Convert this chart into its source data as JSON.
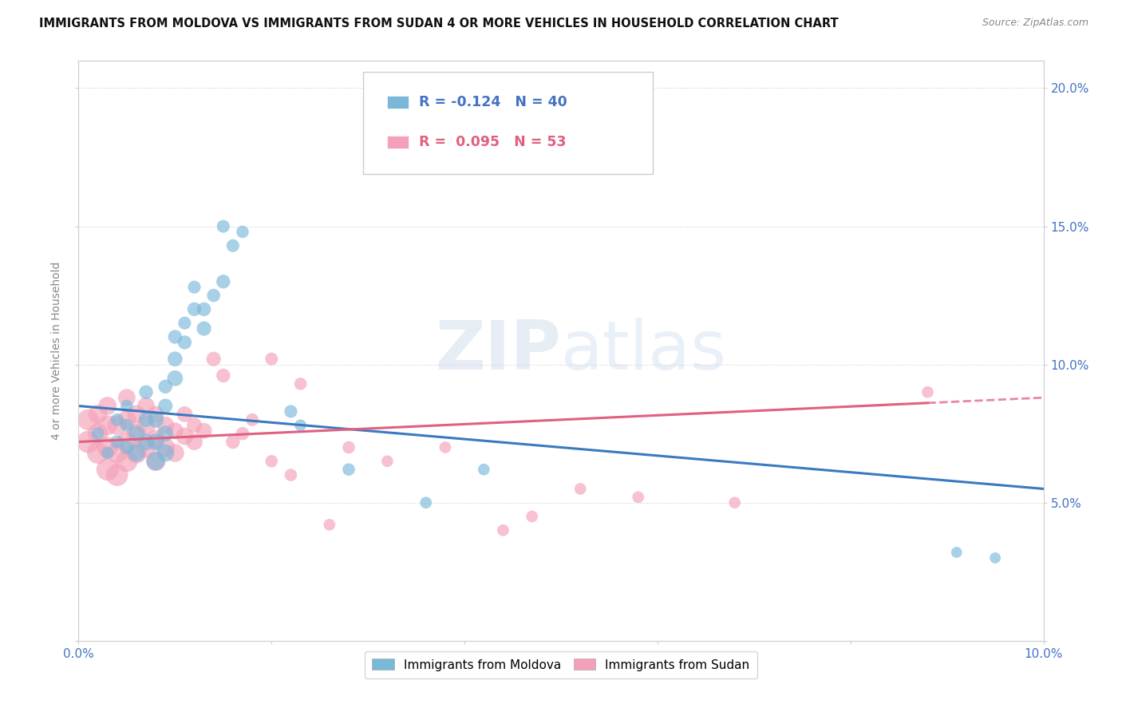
{
  "title": "IMMIGRANTS FROM MOLDOVA VS IMMIGRANTS FROM SUDAN 4 OR MORE VEHICLES IN HOUSEHOLD CORRELATION CHART",
  "source": "Source: ZipAtlas.com",
  "ylabel": "4 or more Vehicles in Household",
  "xlim": [
    0.0,
    0.1
  ],
  "ylim": [
    0.0,
    0.21
  ],
  "xticks": [
    0.0,
    0.02,
    0.04,
    0.06,
    0.08,
    0.1
  ],
  "yticks": [
    0.0,
    0.05,
    0.1,
    0.15,
    0.2
  ],
  "ytick_labels_right": [
    "",
    "5.0%",
    "10.0%",
    "15.0%",
    "20.0%"
  ],
  "xtick_labels": [
    "0.0%",
    "",
    "",
    "",
    "",
    "10.0%"
  ],
  "moldova_color": "#7ab8d9",
  "sudan_color": "#f4a0b8",
  "moldova_line_color": "#3a7abf",
  "sudan_line_color": "#e06080",
  "watermark": "ZIPatlas",
  "moldova_r": -0.124,
  "moldova_n": 40,
  "sudan_r": 0.095,
  "sudan_n": 53,
  "moldova_x": [
    0.002,
    0.003,
    0.004,
    0.004,
    0.005,
    0.005,
    0.005,
    0.006,
    0.006,
    0.007,
    0.007,
    0.007,
    0.008,
    0.008,
    0.008,
    0.009,
    0.009,
    0.009,
    0.009,
    0.01,
    0.01,
    0.01,
    0.011,
    0.011,
    0.012,
    0.012,
    0.013,
    0.013,
    0.014,
    0.015,
    0.015,
    0.016,
    0.017,
    0.022,
    0.023,
    0.028,
    0.036,
    0.042,
    0.091,
    0.095
  ],
  "moldova_y": [
    0.075,
    0.068,
    0.072,
    0.08,
    0.07,
    0.078,
    0.085,
    0.068,
    0.075,
    0.072,
    0.08,
    0.09,
    0.065,
    0.072,
    0.08,
    0.068,
    0.075,
    0.085,
    0.092,
    0.095,
    0.102,
    0.11,
    0.108,
    0.115,
    0.12,
    0.128,
    0.113,
    0.12,
    0.125,
    0.15,
    0.13,
    0.143,
    0.148,
    0.083,
    0.078,
    0.062,
    0.05,
    0.062,
    0.032,
    0.03
  ],
  "moldova_size": [
    30,
    28,
    32,
    30,
    35,
    30,
    28,
    55,
    45,
    50,
    40,
    35,
    60,
    50,
    45,
    55,
    45,
    38,
    35,
    45,
    40,
    35,
    35,
    30,
    35,
    30,
    38,
    35,
    32,
    30,
    35,
    30,
    28,
    30,
    25,
    28,
    25,
    25,
    22,
    22
  ],
  "sudan_x": [
    0.001,
    0.001,
    0.002,
    0.002,
    0.002,
    0.003,
    0.003,
    0.003,
    0.003,
    0.004,
    0.004,
    0.004,
    0.005,
    0.005,
    0.005,
    0.005,
    0.006,
    0.006,
    0.006,
    0.007,
    0.007,
    0.007,
    0.008,
    0.008,
    0.008,
    0.009,
    0.009,
    0.01,
    0.01,
    0.011,
    0.011,
    0.012,
    0.012,
    0.013,
    0.014,
    0.015,
    0.016,
    0.017,
    0.018,
    0.02,
    0.02,
    0.022,
    0.023,
    0.026,
    0.028,
    0.032,
    0.038,
    0.044,
    0.047,
    0.052,
    0.058,
    0.068,
    0.088
  ],
  "sudan_y": [
    0.072,
    0.08,
    0.068,
    0.075,
    0.082,
    0.062,
    0.07,
    0.078,
    0.085,
    0.06,
    0.068,
    0.078,
    0.065,
    0.072,
    0.08,
    0.088,
    0.068,
    0.075,
    0.082,
    0.07,
    0.078,
    0.085,
    0.065,
    0.073,
    0.082,
    0.07,
    0.078,
    0.068,
    0.076,
    0.074,
    0.082,
    0.072,
    0.078,
    0.076,
    0.102,
    0.096,
    0.072,
    0.075,
    0.08,
    0.102,
    0.065,
    0.06,
    0.093,
    0.042,
    0.07,
    0.065,
    0.07,
    0.04,
    0.045,
    0.055,
    0.052,
    0.05,
    0.09
  ],
  "sudan_size": [
    90,
    80,
    85,
    75,
    65,
    90,
    80,
    70,
    60,
    88,
    78,
    68,
    85,
    75,
    65,
    55,
    80,
    70,
    60,
    75,
    65,
    55,
    70,
    60,
    50,
    65,
    55,
    60,
    50,
    55,
    45,
    50,
    42,
    45,
    38,
    35,
    35,
    32,
    30,
    30,
    28,
    28,
    28,
    25,
    28,
    25,
    25,
    25,
    25,
    25,
    25,
    25,
    25
  ]
}
